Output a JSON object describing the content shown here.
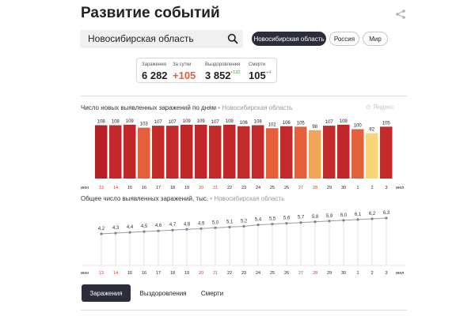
{
  "header": {
    "title": "Развитие событий"
  },
  "search": {
    "value": "Новосибирская область"
  },
  "regions": [
    "Новосибирская область",
    "Россия",
    "Мир"
  ],
  "stats": {
    "infections": {
      "label": "Заражения",
      "value": "6 282"
    },
    "per_day": {
      "label": "За сутки",
      "value": "+105"
    },
    "recoveries": {
      "label": "Выздоровления",
      "value": "3 852",
      "delta": "+132"
    },
    "deaths": {
      "label": "Смерти",
      "value": "105",
      "delta": "+4"
    }
  },
  "colors": {
    "accent_red": "#c62f2c",
    "orange": "#e76737",
    "green": "#2e9e4b",
    "dark": "#2b2d3a"
  },
  "chart1": {
    "title": "Число новых выявленных заражений по дням",
    "region": "Новосибирская область",
    "watermark": "Яндекс"
  },
  "chart2": {
    "title": "Общее число выявленных заражений, тыс.",
    "region": "Новосибирская область"
  },
  "tabs": [
    "Заражения",
    "Выздоровления",
    "Смерти"
  ],
  "chart_data": [
    {
      "type": "bar",
      "title": "Число новых выявленных заражений по дням",
      "categories": [
        "13",
        "14",
        "15",
        "16",
        "17",
        "18",
        "19",
        "20",
        "21",
        "22",
        "23",
        "24",
        "25",
        "26",
        "27",
        "28",
        "29",
        "30",
        "1",
        "2",
        "3"
      ],
      "values": [
        108,
        108,
        109,
        103,
        107,
        107,
        109,
        109,
        107,
        109,
        106,
        108,
        102,
        106,
        105,
        98,
        107,
        109,
        100,
        92,
        105
      ],
      "bar_colors": [
        "#b51f26",
        "#c2282c",
        "#c1262b",
        "#e4603a",
        "#c22a2c",
        "#c22a2c",
        "#c1262b",
        "#c1262b",
        "#c22a2c",
        "#c1262b",
        "#c22a2c",
        "#c22a2c",
        "#e4603a",
        "#c22a2c",
        "#e4603a",
        "#f0a55b",
        "#c22a2c",
        "#c1262b",
        "#e4603a",
        "#f6d679",
        "#c22a2c"
      ],
      "x_start_label": "июн",
      "x_end_label": "июл",
      "weekend_labels": [
        "13",
        "14",
        "20",
        "21",
        "27",
        "28"
      ]
    },
    {
      "type": "line",
      "title": "Общее число выявленных заражений, тыс.",
      "categories": [
        "13",
        "14",
        "15",
        "16",
        "17",
        "18",
        "19",
        "20",
        "21",
        "22",
        "23",
        "24",
        "25",
        "26",
        "27",
        "28",
        "29",
        "30",
        "1",
        "2",
        "3"
      ],
      "values": [
        4.2,
        4.3,
        4.4,
        4.5,
        4.6,
        4.7,
        4.8,
        4.9,
        5.0,
        5.1,
        5.2,
        5.4,
        5.5,
        5.6,
        5.7,
        5.8,
        5.9,
        6.0,
        6.1,
        6.2,
        6.3
      ],
      "value_labels": [
        "4,2",
        "4,3",
        "4,4",
        "4,5",
        "4,6",
        "4,7",
        "4,8",
        "4,9",
        "5,0",
        "5,1",
        "5,2",
        "5,4",
        "5,5",
        "5,6",
        "5,7",
        "5,8",
        "5,9",
        "6,0",
        "6,1",
        "6,2",
        "6,3"
      ],
      "x_start_label": "июн",
      "x_end_label": "июл",
      "weekend_labels": [
        "13",
        "14",
        "20",
        "21",
        "27",
        "28"
      ]
    }
  ]
}
